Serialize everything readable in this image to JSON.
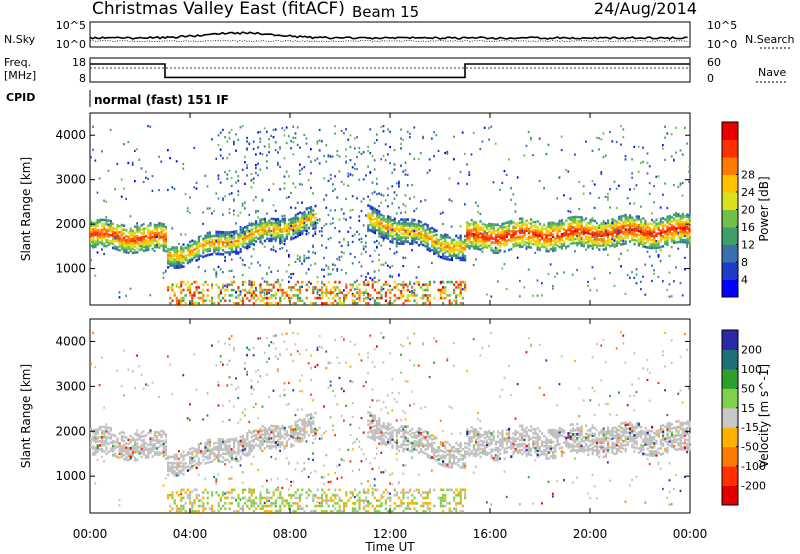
{
  "header": {
    "site": "Christmas Valley East (fitACF)",
    "beam": "Beam 15",
    "date": "24/Aug/2014"
  },
  "strip_labels": {
    "nsky": "N.Sky",
    "nsky_top": "10^5",
    "nsky_bottom": "10^0",
    "nsearch": "N.Search",
    "nsearch_top": "10^5",
    "nsearch_bottom": "10^0",
    "freq_line1": "Freq.",
    "freq_line2": "[MHz]",
    "freq_top": "18",
    "freq_bottom": "8",
    "nave": "Nave",
    "nave_top": "60",
    "nave_bottom": "0",
    "cpid": "CPID",
    "cpid_value": "normal (fast) 151 IF"
  },
  "chart_data": [
    {
      "type": "heatmap",
      "panel": "power",
      "ylabel": "Slant Range [km]",
      "ylim": [
        180,
        4500
      ],
      "yticks": [
        1000,
        2000,
        3000,
        4000
      ],
      "colorbar_label": "Power [dB]",
      "colorbar_ticks": [
        4,
        8,
        12,
        16,
        20,
        24,
        28
      ],
      "colorbar_range": [
        0,
        30
      ],
      "colors": [
        "#0000ff",
        "#1f3cc8",
        "#3a6fb0",
        "#3f9f6a",
        "#6fbf4a",
        "#d8e020",
        "#ffc000",
        "#ff7a00",
        "#ff3000",
        "#e80000"
      ],
      "bands": [
        {
          "t": [
            0,
            3
          ],
          "center_km": [
            1750,
            1650
          ],
          "width_km": 300,
          "power_db": 26
        },
        {
          "t": [
            3,
            9
          ],
          "center_km": [
            1250,
            2100
          ],
          "width_km": 260,
          "power_db": 22
        },
        {
          "t": [
            11,
            15
          ],
          "center_km": [
            2100,
            1400
          ],
          "width_km": 280,
          "power_db": 22
        },
        {
          "t": [
            15,
            24
          ],
          "center_km": [
            1700,
            1850
          ],
          "width_km": 320,
          "power_db": 27
        }
      ]
    },
    {
      "type": "heatmap",
      "panel": "velocity",
      "ylabel": "Slant Range [km]",
      "ylim": [
        180,
        4500
      ],
      "yticks": [
        1000,
        2000,
        3000,
        4000
      ],
      "colorbar_label": "Velocity [m s^-1]",
      "colorbar_ticks": [
        200,
        100,
        50,
        15,
        -15,
        -50,
        -100,
        -200
      ],
      "colors": [
        "#2a2aa8",
        "#1f6f7a",
        "#2ca02c",
        "#7fd04a",
        "#c8c8c8",
        "#ffb000",
        "#ff7a00",
        "#ff3000",
        "#e00000"
      ]
    }
  ],
  "xaxis": {
    "label": "Time UT",
    "ticks": [
      "00:00",
      "04:00",
      "08:00",
      "12:00",
      "16:00",
      "20:00",
      "00:00"
    ],
    "range_hours": [
      0,
      24
    ]
  },
  "frequency_mhz": [
    {
      "t": [
        0,
        3
      ],
      "value": 15.5
    },
    {
      "t": [
        3,
        15
      ],
      "value": 9.9
    },
    {
      "t": [
        15,
        24
      ],
      "value": 15.5
    }
  ]
}
